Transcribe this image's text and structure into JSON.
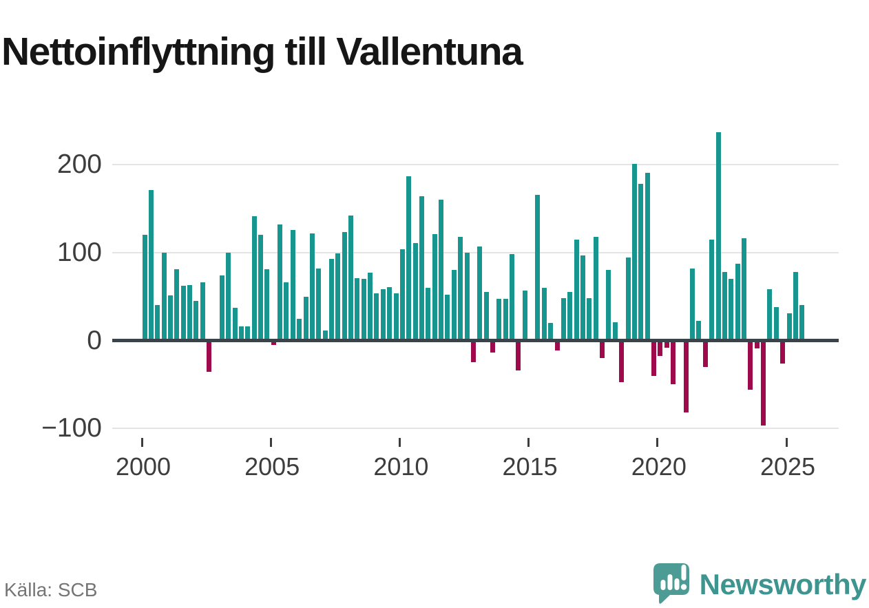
{
  "header": {
    "title": "Nettoinflyttning till Vallentuna"
  },
  "footer": {
    "source_label": "Källa: SCB",
    "brand": "Newsworthy"
  },
  "colors": {
    "positive_bar": "#16968F",
    "negative_bar": "#9E0A4B",
    "gridline": "#E4E4E4",
    "zero_axis": "#3A424A",
    "axis_text": "#3D3D3D",
    "source_text": "#757575",
    "brand_teal": "#3E948E",
    "logo_bubble": "#4C9B95"
  },
  "chart_data": {
    "type": "bar",
    "title": "Nettoinflyttning till Vallentuna",
    "xlabel": "",
    "ylabel": "",
    "frequency": "quarterly",
    "x_start_year": 2000,
    "x_start_quarter": 1,
    "x_end_year": 2025,
    "x_end_quarter": 3,
    "series": [
      {
        "name": "Nettoinflyttning",
        "values": [
          120,
          171,
          40,
          100,
          51,
          81,
          62,
          63,
          45,
          66,
          -36,
          0,
          74,
          100,
          37,
          16,
          16,
          141,
          120,
          81,
          -5,
          132,
          66,
          126,
          25,
          50,
          122,
          82,
          11,
          93,
          99,
          123,
          142,
          71,
          70,
          77,
          54,
          58,
          61,
          54,
          104,
          187,
          111,
          164,
          60,
          121,
          160,
          52,
          80,
          118,
          100,
          -25,
          107,
          55,
          -14,
          47,
          47,
          98,
          -34,
          57,
          0,
          166,
          60,
          20,
          -11,
          48,
          55,
          115,
          97,
          48,
          118,
          -20,
          80,
          21,
          -47,
          94,
          201,
          178,
          191,
          -40,
          -18,
          -8,
          -50,
          0,
          -82,
          82,
          22,
          -30,
          115,
          237,
          78,
          70,
          87,
          116,
          -56,
          -9,
          -97,
          58,
          38,
          -26,
          31,
          78,
          40
        ]
      }
    ],
    "x_tick_labels": [
      "2000",
      "2005",
      "2010",
      "2015",
      "2020",
      "2025"
    ],
    "y_ticks": [
      {
        "value": 200,
        "label": "200"
      },
      {
        "value": 100,
        "label": "100"
      },
      {
        "value": 0,
        "label": "0"
      },
      {
        "value": -100,
        "label": "−100"
      }
    ],
    "ylim": [
      -115,
      250
    ],
    "grid": true,
    "legend": false
  }
}
